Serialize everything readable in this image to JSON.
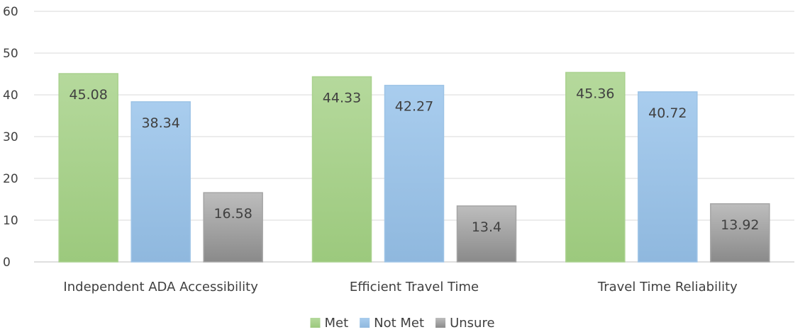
{
  "chart_data": {
    "type": "bar",
    "title": "",
    "xlabel": "",
    "ylabel": "",
    "ylim": [
      0,
      60
    ],
    "yticks": [
      0,
      10,
      20,
      30,
      40,
      50,
      60
    ],
    "grid": true,
    "legend_position": "bottom",
    "categories": [
      "Independent ADA Accessibility",
      "Efficient Travel Time",
      "Travel Time Reliability"
    ],
    "series": [
      {
        "name": "Met",
        "values": [
          45.08,
          44.33,
          45.36
        ],
        "color": "#a9d18e"
      },
      {
        "name": "Not Met",
        "values": [
          38.34,
          42.27,
          40.72
        ],
        "color": "#9dc3e6"
      },
      {
        "name": "Unsure",
        "values": [
          16.58,
          13.4,
          13.92
        ],
        "color": "#a5a5a5"
      }
    ],
    "data_labels": [
      [
        "45.08",
        "38.34",
        "16.58"
      ],
      [
        "44.33",
        "42.27",
        "13.4"
      ],
      [
        "45.36",
        "40.72",
        "13.92"
      ]
    ]
  }
}
